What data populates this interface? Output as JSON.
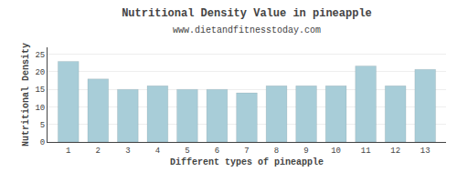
{
  "chart_data": {
    "type": "bar",
    "title": "Nutritional Density Value in pineapple",
    "subtitle": "www.dietandfitnesstoday.com",
    "xlabel": "Different types of pineapple",
    "ylabel": "Nutritional Density",
    "x": [
      1,
      2,
      3,
      4,
      5,
      6,
      7,
      8,
      9,
      10,
      11,
      12,
      13
    ],
    "values": [
      23.0,
      18.0,
      15.0,
      16.0,
      15.0,
      15.0,
      14.0,
      16.0,
      16.0,
      16.0,
      21.7,
      16.0,
      20.7
    ],
    "color": "#a8cdd8",
    "xlim": [
      0.3,
      13.7
    ],
    "xticks": [
      1,
      2,
      3,
      4,
      5,
      6,
      7,
      8,
      9,
      10,
      11,
      12,
      13
    ],
    "ylim": [
      0,
      27
    ],
    "yticks": [
      0,
      5,
      10,
      15,
      20,
      25
    ],
    "grid": true
  }
}
